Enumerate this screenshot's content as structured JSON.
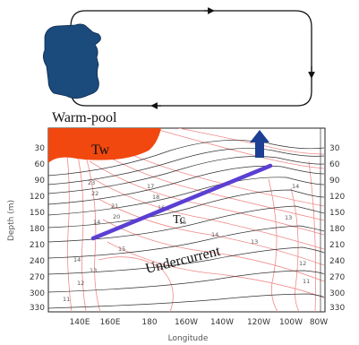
{
  "top_panel": {
    "label": "Warm-pool"
  },
  "section": {
    "labels": {
      "tw": "Tw",
      "tc": "Tc",
      "undercurrent": "Undercurrent"
    },
    "axes": {
      "ylabel": "Depth (m)",
      "xlabel": "Longitude",
      "y_ticks": [
        "30",
        "60",
        "90",
        "120",
        "150",
        "180",
        "210",
        "240",
        "270",
        "300",
        "330"
      ],
      "x_ticks": [
        "140E",
        "160E",
        "180",
        "160W",
        "140W",
        "120W",
        "100W",
        "80W"
      ]
    },
    "contour_labels": [
      "17",
      "18",
      "16",
      "15",
      "14",
      "13",
      "14",
      "15",
      "13",
      "14",
      "23",
      "22",
      "21",
      "20",
      "12",
      "11",
      "14",
      "13",
      "12",
      "11"
    ],
    "colors": {
      "warm_pool": "#1b4a7c",
      "tw_patch": "#f0480f",
      "thermocline_line": "#5b3fd2",
      "upwelling_arrow": "#1c3f93",
      "red_contours": "#f08a8a",
      "black_contours": "#333333"
    }
  }
}
